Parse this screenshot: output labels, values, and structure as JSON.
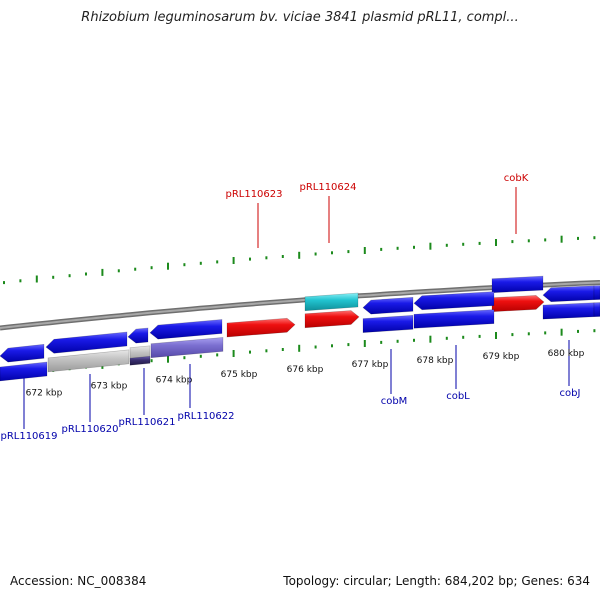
{
  "title": "Rhizobium leguminosarum bv. viciae 3841 plasmid pRL11, compl...",
  "footer": {
    "accession": "Accession: NC_008384",
    "summary": "Topology: circular; Length: 684,202 bp; Genes: 634"
  },
  "chart_data": {
    "type": "genome-map",
    "scale_labels": [
      {
        "label": "672 kbp",
        "kbp": 672
      },
      {
        "label": "673 kbp",
        "kbp": 673
      },
      {
        "label": "674 kbp",
        "kbp": 674
      },
      {
        "label": "675 kbp",
        "kbp": 675
      },
      {
        "label": "676 kbp",
        "kbp": 676
      },
      {
        "label": "677 kbp",
        "kbp": 677
      },
      {
        "label": "678 kbp",
        "kbp": 678
      },
      {
        "label": "679 kbp",
        "kbp": 679
      },
      {
        "label": "680 kbp",
        "kbp": 680
      }
    ],
    "colors": {
      "forward_gene": "#e8101a",
      "reverse_gene": "#1a1ae8",
      "backbone": "#8a8a8a",
      "ticks": "#1c8a1c",
      "forward_label": "#cc0000",
      "reverse_label": "#0000aa",
      "light_purple": "#7b6fd0",
      "dark_purple": "#3b3070",
      "grey": "#c0c0c0",
      "cyan": "#22c4d0"
    },
    "labels": [
      {
        "text": "pRL110623",
        "strand": "forward"
      },
      {
        "text": "pRL110624",
        "strand": "forward"
      },
      {
        "text": "cobK",
        "strand": "forward"
      },
      {
        "text": "pRL110619",
        "strand": "reverse"
      },
      {
        "text": "pRL110620",
        "strand": "reverse"
      },
      {
        "text": "pRL110621",
        "strand": "reverse"
      },
      {
        "text": "pRL110622",
        "strand": "reverse"
      },
      {
        "text": "cobM",
        "strand": "reverse"
      },
      {
        "text": "cobL",
        "strand": "reverse"
      },
      {
        "text": "cobJ",
        "strand": "reverse"
      }
    ]
  }
}
